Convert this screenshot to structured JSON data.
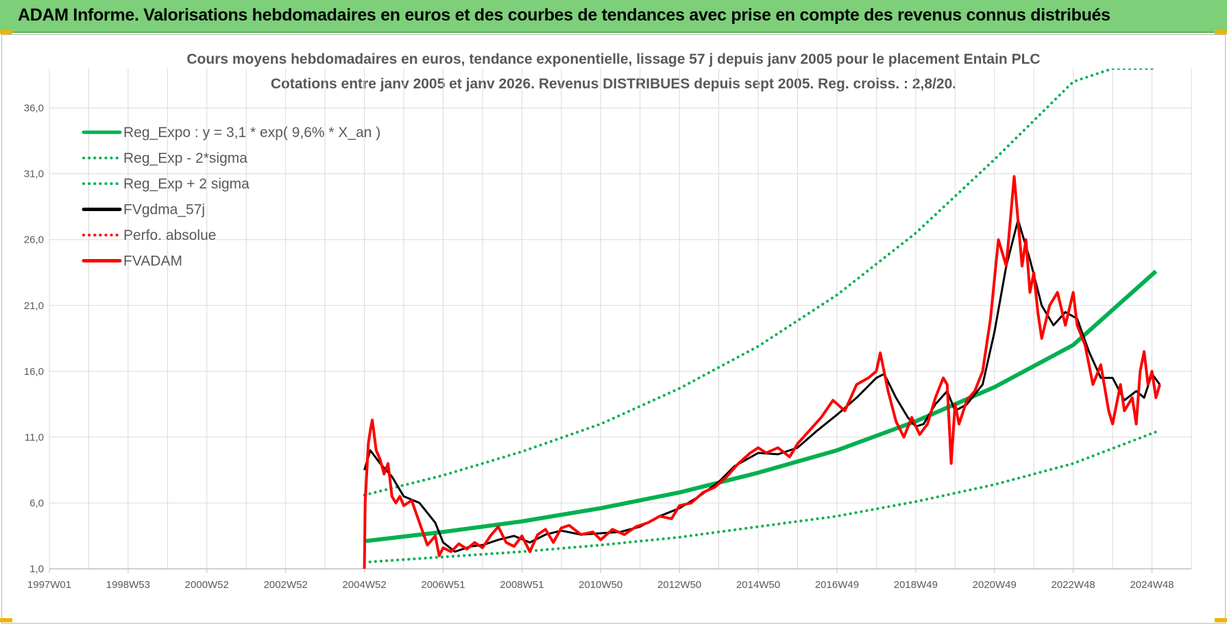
{
  "banner": {
    "title": "ADAM Informe. Valorisations hebdomadaires en euros et des courbes de tendances avec prise en compte des revenus connus distribués",
    "bg_color": "#7dcf7a"
  },
  "chart_data": {
    "type": "line",
    "title": "Cours moyens hebdomadaires en euros, tendance exponentielle, lissage 57 j depuis janv 2005 pour le placement Entain PLC",
    "subtitle": "Cotations entre janv 2005 et janv 2026. Revenus DISTRIBUES depuis sept 2005. Reg. croiss. : 2,8/20.",
    "xlabel": "",
    "ylabel": "",
    "xlim": [
      1997.0,
      2026.0
    ],
    "ylim": [
      1.0,
      39.0
    ],
    "y_ticks": [
      "1,0",
      "6,0",
      "11,0",
      "16,0",
      "21,0",
      "26,0",
      "31,0",
      "36,0"
    ],
    "y_tick_values": [
      1,
      6,
      11,
      16,
      21,
      26,
      31,
      36
    ],
    "x_ticks": [
      "1997W01",
      "1998W53",
      "2000W52",
      "2002W52",
      "2004W52",
      "2006W51",
      "2008W51",
      "2010W50",
      "2012W50",
      "2014W50",
      "2016W49",
      "2018W49",
      "2020W49",
      "2022W48",
      "2024W48"
    ],
    "x_tick_values": [
      1997.0,
      1999.0,
      2001.0,
      2003.0,
      2005.0,
      2007.0,
      2009.0,
      2011.0,
      2013.0,
      2015.0,
      2017.0,
      2019.0,
      2021.0,
      2023.0,
      2025.0
    ],
    "grid": true,
    "legend_position": "top-left",
    "series": [
      {
        "name": "Reg_Expo : y = 3,1 * exp( 9,6% *  X_an )",
        "color": "#00b050",
        "style": "solid",
        "width": 6,
        "x": [
          2005.0,
          2007.0,
          2009.0,
          2011.0,
          2013.0,
          2015.0,
          2017.0,
          2019.0,
          2021.0,
          2023.0,
          2025.1
        ],
        "values": [
          3.1,
          3.8,
          4.6,
          5.6,
          6.8,
          8.3,
          10.0,
          12.2,
          14.8,
          18.0,
          23.6
        ]
      },
      {
        "name": "Reg_Exp - 2*sigma",
        "color": "#00b050",
        "style": "dotted",
        "width": 4,
        "x": [
          2005.0,
          2007.0,
          2009.0,
          2011.0,
          2013.0,
          2015.0,
          2017.0,
          2019.0,
          2021.0,
          2023.0,
          2025.1
        ],
        "values": [
          1.5,
          1.9,
          2.3,
          2.8,
          3.4,
          4.2,
          5.0,
          6.1,
          7.4,
          9.0,
          11.4
        ]
      },
      {
        "name": "Reg_Exp + 2 sigma",
        "color": "#00b050",
        "style": "dotted",
        "width": 4,
        "x": [
          2005.0,
          2007.0,
          2009.0,
          2011.0,
          2013.0,
          2015.0,
          2017.0,
          2019.0,
          2021.0,
          2023.0,
          2024.0,
          2025.1
        ],
        "values": [
          6.6,
          8.1,
          9.9,
          12.0,
          14.7,
          17.9,
          21.8,
          26.5,
          32.1,
          38.0,
          39.0,
          39.0
        ]
      },
      {
        "name": "FVgdma_57j",
        "color": "#000000",
        "style": "solid",
        "width": 3,
        "x": [
          2005.0,
          2005.15,
          2005.4,
          2005.7,
          2006.0,
          2006.4,
          2006.8,
          2007.0,
          2007.3,
          2007.7,
          2008.0,
          2008.4,
          2008.8,
          2009.2,
          2009.6,
          2010.0,
          2010.5,
          2011.0,
          2011.5,
          2012.0,
          2012.5,
          2013.0,
          2013.5,
          2014.0,
          2014.4,
          2015.0,
          2015.5,
          2016.0,
          2016.5,
          2017.0,
          2017.5,
          2018.0,
          2018.2,
          2018.5,
          2018.8,
          2019.0,
          2019.2,
          2019.5,
          2019.8,
          2020.0,
          2020.3,
          2020.7,
          2021.0,
          2021.3,
          2021.6,
          2021.9,
          2022.2,
          2022.5,
          2022.8,
          2023.1,
          2023.4,
          2023.7,
          2024.0,
          2024.3,
          2024.6,
          2024.8,
          2025.0,
          2025.2
        ],
        "values": [
          8.5,
          10.0,
          9.0,
          8.0,
          6.5,
          6.0,
          4.5,
          3.0,
          2.3,
          2.7,
          2.8,
          3.2,
          3.5,
          3.0,
          3.6,
          3.9,
          3.6,
          3.7,
          3.8,
          4.2,
          5.0,
          5.6,
          6.5,
          7.6,
          8.8,
          9.8,
          9.7,
          10.2,
          11.5,
          12.7,
          14.0,
          15.5,
          15.8,
          14.0,
          12.5,
          11.8,
          12.0,
          13.5,
          14.5,
          13.0,
          13.5,
          15.0,
          19.0,
          24.0,
          27.5,
          24.5,
          21.0,
          19.5,
          20.5,
          20.0,
          17.5,
          15.5,
          15.5,
          13.8,
          14.5,
          14.0,
          15.8,
          15.0
        ]
      },
      {
        "name": "Perfo. absolue",
        "color": "#ff0000",
        "style": "dotted",
        "width": 3,
        "x": [],
        "values": []
      },
      {
        "name": "FVADAM",
        "color": "#ff0000",
        "style": "solid",
        "width": 4,
        "x": [
          2005.0,
          2005.02,
          2005.1,
          2005.15,
          2005.2,
          2005.3,
          2005.4,
          2005.5,
          2005.6,
          2005.7,
          2005.8,
          2005.9,
          2006.0,
          2006.2,
          2006.4,
          2006.6,
          2006.8,
          2006.9,
          2007.0,
          2007.2,
          2007.4,
          2007.6,
          2007.8,
          2008.0,
          2008.2,
          2008.4,
          2008.6,
          2008.8,
          2009.0,
          2009.2,
          2009.4,
          2009.6,
          2009.8,
          2010.0,
          2010.2,
          2010.5,
          2010.8,
          2011.0,
          2011.3,
          2011.6,
          2011.9,
          2012.2,
          2012.5,
          2012.8,
          2013.0,
          2013.3,
          2013.6,
          2013.9,
          2014.2,
          2014.5,
          2014.8,
          2015.0,
          2015.2,
          2015.5,
          2015.8,
          2016.0,
          2016.3,
          2016.6,
          2016.9,
          2017.2,
          2017.5,
          2017.8,
          2018.0,
          2018.1,
          2018.3,
          2018.5,
          2018.7,
          2018.9,
          2019.1,
          2019.3,
          2019.5,
          2019.7,
          2019.8,
          2019.9,
          2020.0,
          2020.1,
          2020.3,
          2020.5,
          2020.7,
          2020.9,
          2021.1,
          2021.3,
          2021.5,
          2021.7,
          2021.8,
          2021.9,
          2022.0,
          2022.1,
          2022.2,
          2022.4,
          2022.6,
          2022.8,
          2023.0,
          2023.1,
          2023.3,
          2023.5,
          2023.7,
          2023.9,
          2024.0,
          2024.2,
          2024.3,
          2024.5,
          2024.6,
          2024.7,
          2024.8,
          2024.9,
          2025.0,
          2025.1,
          2025.2
        ],
        "values": [
          1.0,
          6.0,
          10.5,
          11.5,
          12.3,
          10.0,
          9.3,
          8.2,
          9.0,
          6.5,
          6.0,
          6.5,
          5.8,
          6.2,
          4.5,
          2.8,
          3.5,
          2.0,
          2.6,
          2.3,
          2.9,
          2.5,
          3.0,
          2.6,
          3.5,
          4.2,
          3.0,
          2.7,
          3.5,
          2.3,
          3.6,
          4.0,
          3.0,
          4.1,
          4.3,
          3.6,
          3.8,
          3.2,
          4.0,
          3.6,
          4.2,
          4.5,
          5.0,
          4.8,
          5.8,
          6.0,
          6.8,
          7.2,
          8.0,
          9.0,
          9.8,
          10.2,
          9.8,
          10.2,
          9.5,
          10.5,
          11.5,
          12.5,
          13.8,
          13.0,
          15.0,
          15.5,
          16.0,
          17.4,
          14.5,
          12.2,
          11.0,
          12.5,
          11.2,
          12.0,
          14.0,
          15.5,
          15.0,
          9.0,
          13.5,
          12.0,
          13.8,
          14.5,
          16.0,
          20.0,
          26.0,
          24.0,
          30.8,
          24.0,
          26.0,
          22.0,
          23.5,
          20.5,
          18.5,
          21.0,
          22.0,
          19.5,
          22.0,
          19.5,
          18.0,
          15.0,
          16.5,
          13.0,
          12.0,
          15.0,
          13.0,
          14.0,
          12.0,
          16.0,
          17.5,
          15.0,
          16.0,
          14.0,
          15.0
        ]
      }
    ]
  }
}
